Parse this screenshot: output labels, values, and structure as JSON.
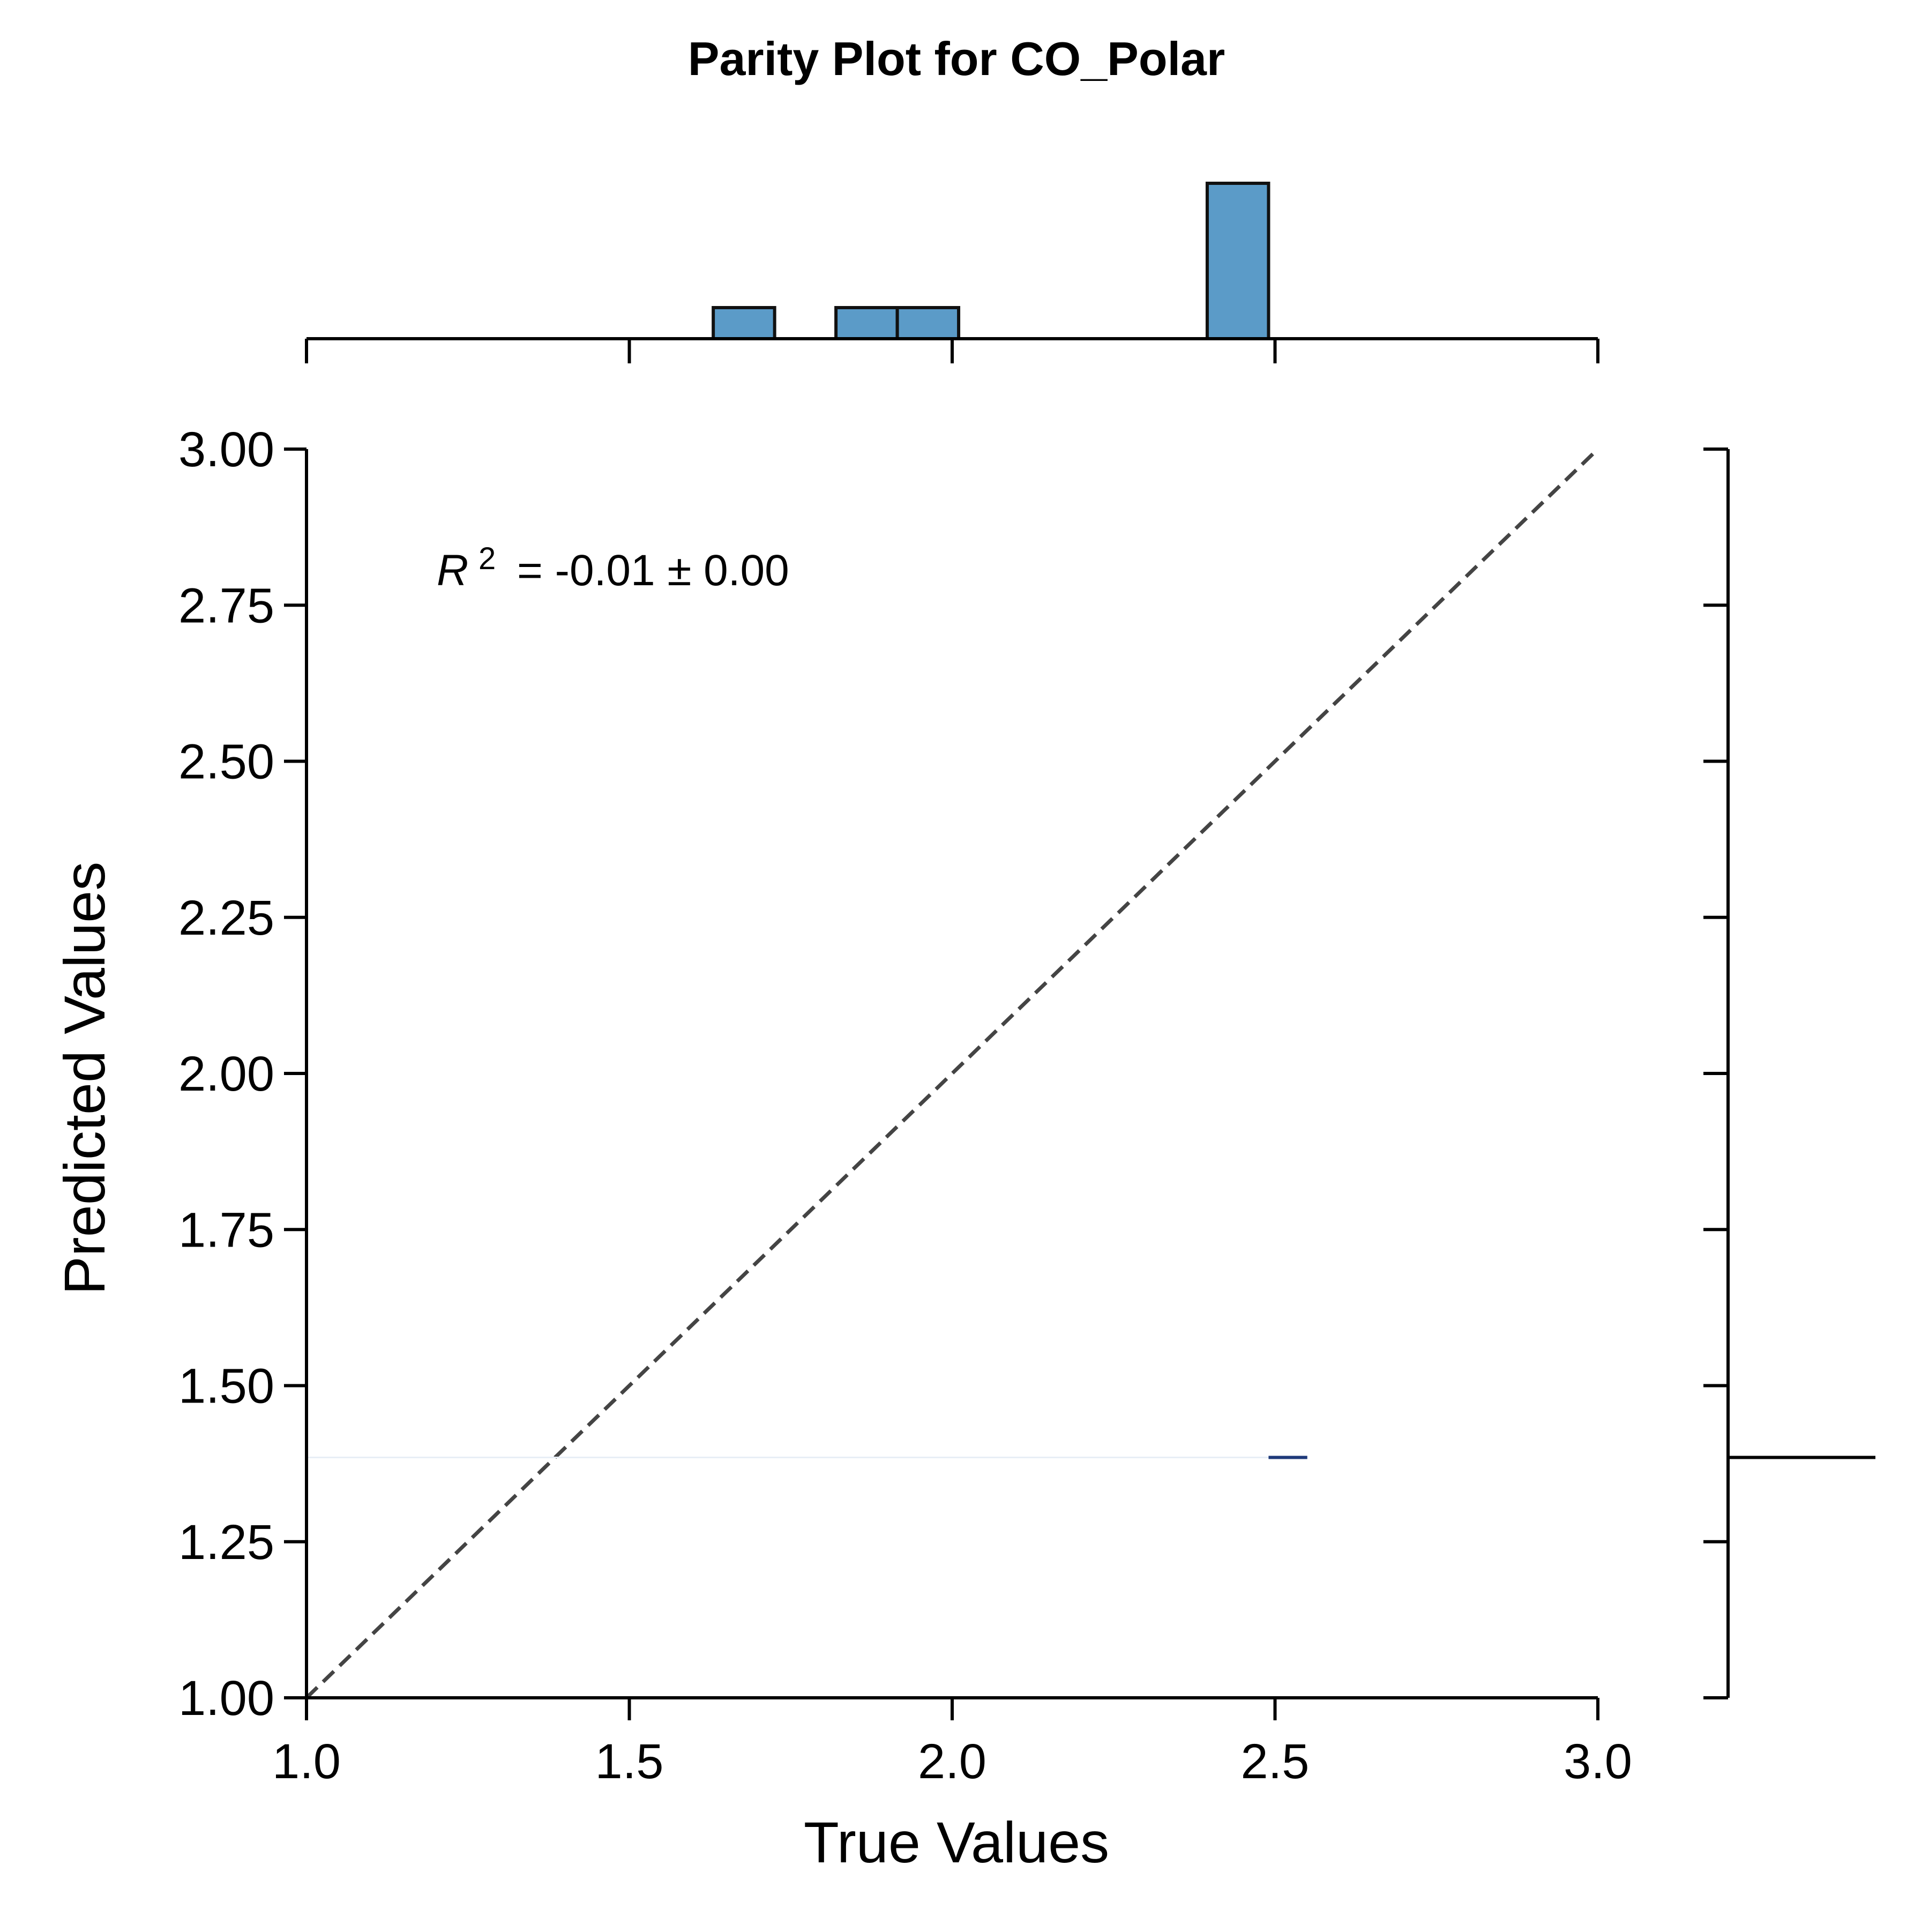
{
  "chart_data": {
    "type": "scatter",
    "title": "Parity Plot for CO_Polar",
    "xlabel": "True Values",
    "ylabel": "Predicted Values",
    "xlim": [
      1.0,
      3.0
    ],
    "ylim": [
      1.0,
      3.0
    ],
    "x_ticks": [
      "1.0",
      "1.5",
      "2.0",
      "2.5",
      "3.0"
    ],
    "y_ticks": [
      "1.00",
      "1.25",
      "1.50",
      "1.75",
      "2.00",
      "2.25",
      "2.50",
      "2.75",
      "3.00"
    ],
    "annotation": {
      "symbol": "R",
      "superscript": "2",
      "text": "= -0.01 ± 0.00"
    },
    "parity_line": {
      "from": [
        1.0,
        1.0
      ],
      "to": [
        3.0,
        3.0
      ],
      "style": "dashed",
      "color": "#444444"
    },
    "prediction": {
      "x_range": [
        2.49,
        2.55
      ],
      "y": 1.385,
      "color": "#1f3a7a"
    },
    "top_histogram": {
      "color": "#5b9bc8",
      "bins": [
        {
          "x0": 1.63,
          "x1": 1.725,
          "count": 1
        },
        {
          "x0": 1.82,
          "x1": 1.915,
          "count": 1
        },
        {
          "x0": 1.915,
          "x1": 2.01,
          "count": 1
        },
        {
          "x0": 2.395,
          "x1": 2.49,
          "count": 5
        }
      ]
    },
    "right_marginal": {
      "y": 1.385,
      "color": "#000000"
    },
    "grid": false,
    "legend": "none"
  }
}
